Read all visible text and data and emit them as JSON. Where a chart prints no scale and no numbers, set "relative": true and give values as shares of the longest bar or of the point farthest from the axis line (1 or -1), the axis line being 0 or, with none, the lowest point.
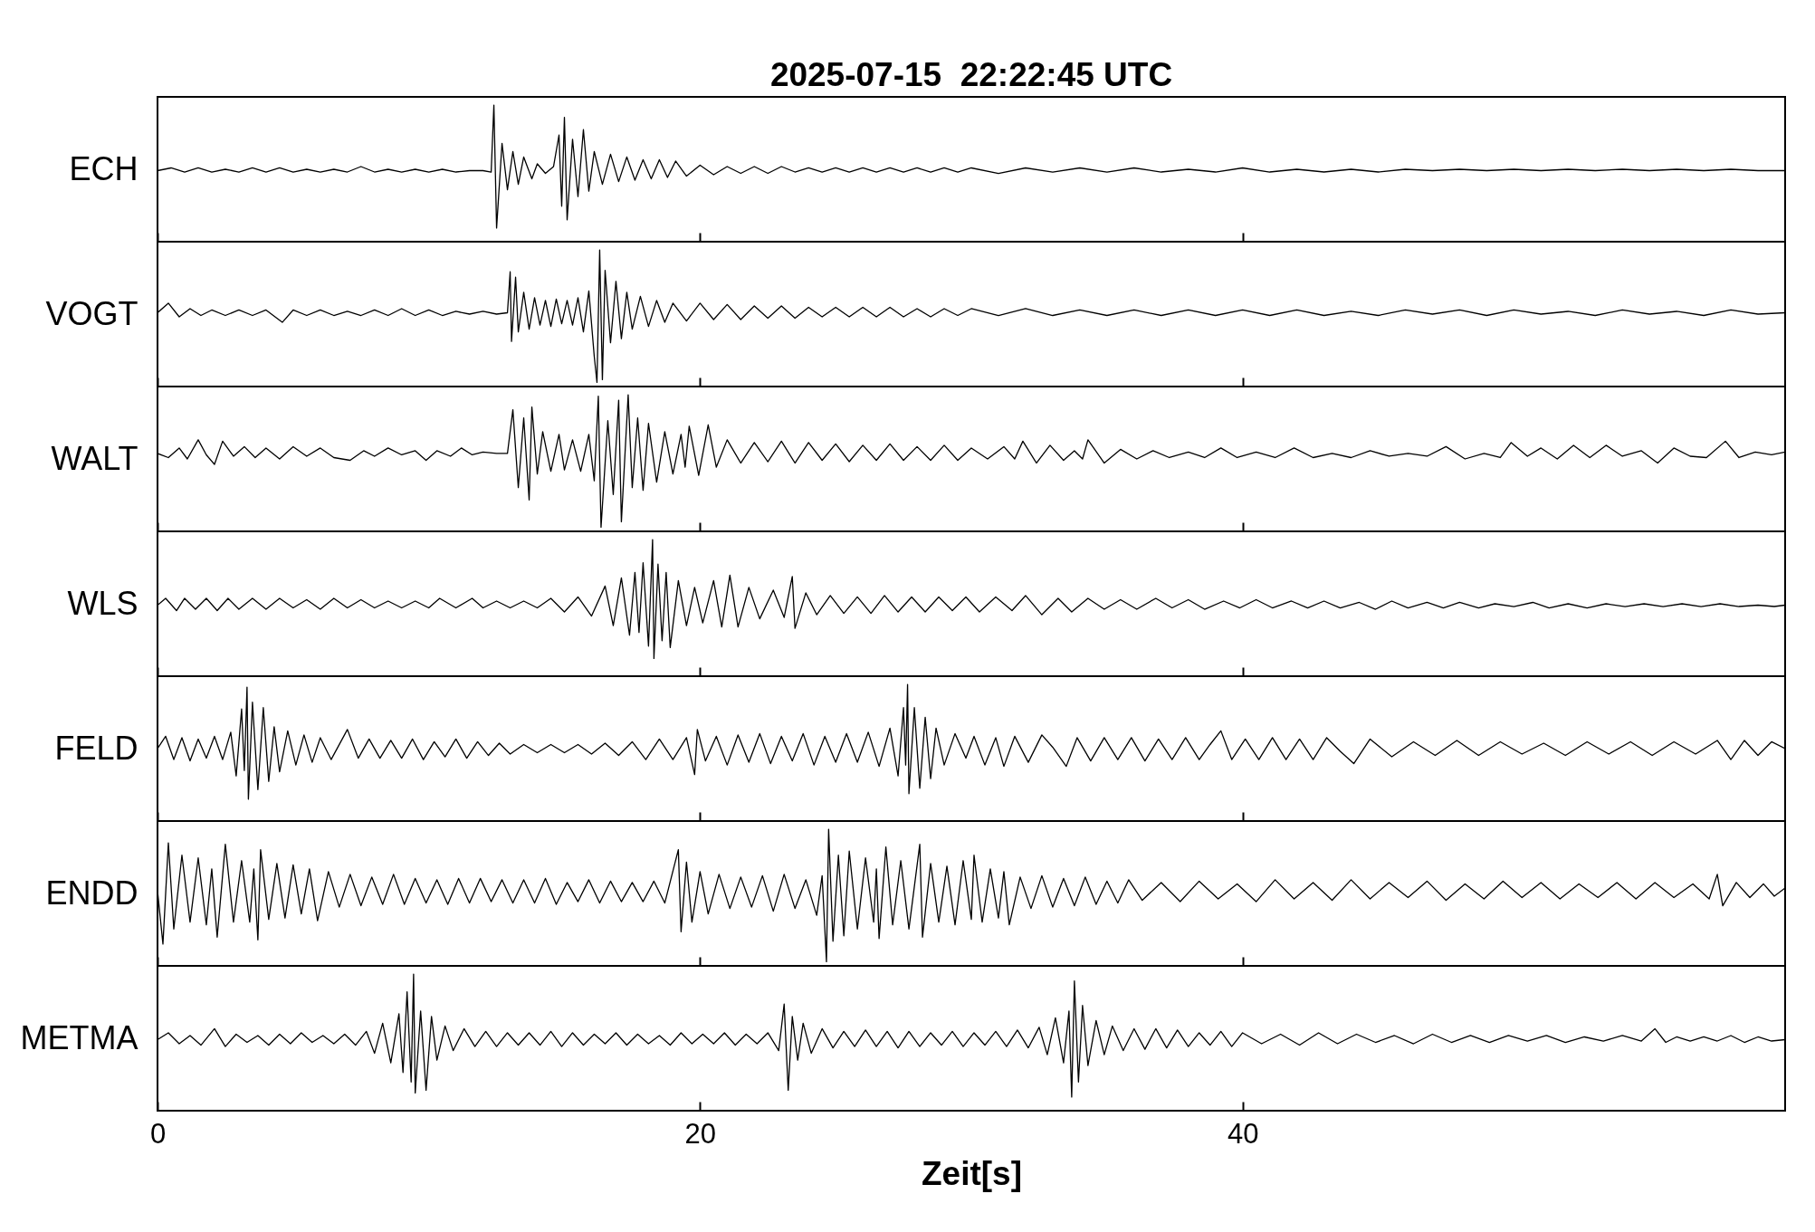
{
  "chart_data": [
    {
      "type": "line",
      "title": "2025-07-15  22:22:45 UTC",
      "ylabel": "ECH",
      "relative": true,
      "xlim": [
        0,
        60
      ],
      "xticks": [
        0,
        20,
        40
      ],
      "tick_labels": false,
      "x": [
        0,
        0.5,
        1,
        1.5,
        2,
        2.5,
        3,
        3.5,
        4,
        4.5,
        5,
        5.5,
        6,
        6.5,
        7,
        7.5,
        8,
        8.5,
        9,
        9.5,
        10,
        10.5,
        11,
        11.5,
        12,
        12.3,
        12.4,
        12.5,
        12.7,
        12.9,
        13.1,
        13.3,
        13.5,
        13.8,
        14,
        14.3,
        14.6,
        14.8,
        14.9,
        15,
        15.1,
        15.3,
        15.5,
        15.7,
        15.9,
        16.1,
        16.4,
        16.7,
        17,
        17.3,
        17.6,
        17.9,
        18.2,
        18.5,
        18.8,
        19.1,
        19.5,
        20,
        20.5,
        21,
        21.5,
        22,
        22.5,
        23,
        23.5,
        24,
        24.5,
        25,
        25.5,
        26,
        26.5,
        27,
        27.5,
        28,
        28.5,
        29,
        29.5,
        30,
        31,
        32,
        33,
        34,
        35,
        36,
        37,
        38,
        39,
        40,
        41,
        42,
        43,
        44,
        45,
        46,
        47,
        48,
        49,
        50,
        51,
        52,
        53,
        54,
        55,
        56,
        57,
        58,
        59,
        60
      ],
      "series": [
        {
          "color": "#000000",
          "values": [
            0.52,
            0.54,
            0.51,
            0.54,
            0.51,
            0.53,
            0.51,
            0.54,
            0.51,
            0.54,
            0.51,
            0.53,
            0.51,
            0.53,
            0.51,
            0.55,
            0.51,
            0.53,
            0.51,
            0.53,
            0.51,
            0.53,
            0.51,
            0.52,
            0.52,
            0.51,
            1,
            0.1,
            0.72,
            0.38,
            0.66,
            0.42,
            0.62,
            0.46,
            0.57,
            0.5,
            0.55,
            0.78,
            0.26,
            0.91,
            0.16,
            0.75,
            0.33,
            0.82,
            0.37,
            0.66,
            0.42,
            0.64,
            0.44,
            0.62,
            0.45,
            0.6,
            0.46,
            0.6,
            0.47,
            0.59,
            0.48,
            0.56,
            0.49,
            0.55,
            0.5,
            0.55,
            0.5,
            0.55,
            0.51,
            0.54,
            0.51,
            0.54,
            0.51,
            0.54,
            0.51,
            0.54,
            0.51,
            0.54,
            0.51,
            0.54,
            0.51,
            0.54,
            0.5,
            0.54,
            0.51,
            0.54,
            0.51,
            0.54,
            0.51,
            0.53,
            0.51,
            0.54,
            0.51,
            0.53,
            0.51,
            0.53,
            0.51,
            0.53,
            0.52,
            0.53,
            0.52,
            0.53,
            0.52,
            0.53,
            0.52,
            0.53,
            0.52,
            0.53,
            0.52,
            0.53,
            0.52,
            0.52
          ]
        }
      ]
    },
    {
      "type": "line",
      "ylabel": "VOGT",
      "relative": true,
      "xlim": [
        0,
        60
      ],
      "xticks": [
        0,
        20,
        40
      ],
      "tick_labels": false,
      "x": [
        0,
        0.4,
        0.8,
        1.2,
        1.6,
        2,
        2.5,
        3,
        3.5,
        4,
        4.6,
        5,
        5.5,
        6,
        6.5,
        7,
        7.5,
        8,
        8.5,
        9,
        9.5,
        10,
        10.5,
        11,
        11.5,
        12,
        12.5,
        12.9,
        13,
        13.05,
        13.2,
        13.3,
        13.5,
        13.7,
        13.9,
        14.1,
        14.3,
        14.5,
        14.7,
        14.9,
        15.1,
        15.3,
        15.5,
        15.7,
        15.9,
        16.1,
        16.2,
        16.3,
        16.4,
        16.5,
        16.7,
        16.9,
        17.1,
        17.3,
        17.5,
        17.8,
        18.1,
        18.4,
        18.7,
        19,
        19.5,
        20,
        20.5,
        21,
        21.5,
        22,
        22.5,
        23,
        23.5,
        24,
        24.5,
        25,
        25.5,
        26,
        26.5,
        27,
        27.5,
        28,
        28.5,
        29,
        29.5,
        30,
        31,
        32,
        33,
        34,
        35,
        36,
        37,
        38,
        39,
        40,
        41,
        42,
        43,
        44,
        45,
        46,
        47,
        48,
        49,
        50,
        51,
        52,
        53,
        54,
        55,
        56,
        57,
        58,
        59,
        60
      ],
      "series": [
        {
          "color": "#000000",
          "values": [
            0.54,
            0.61,
            0.51,
            0.57,
            0.52,
            0.56,
            0.52,
            0.56,
            0.52,
            0.56,
            0.47,
            0.56,
            0.52,
            0.56,
            0.52,
            0.55,
            0.52,
            0.56,
            0.52,
            0.57,
            0.52,
            0.56,
            0.52,
            0.55,
            0.53,
            0.55,
            0.53,
            0.54,
            0.84,
            0.33,
            0.8,
            0.4,
            0.69,
            0.42,
            0.65,
            0.45,
            0.63,
            0.44,
            0.64,
            0.46,
            0.63,
            0.45,
            0.65,
            0.4,
            0.7,
            0.22,
            0.03,
            1,
            0.05,
            0.85,
            0.32,
            0.77,
            0.35,
            0.69,
            0.42,
            0.66,
            0.44,
            0.63,
            0.47,
            0.61,
            0.48,
            0.61,
            0.49,
            0.6,
            0.49,
            0.59,
            0.5,
            0.59,
            0.5,
            0.58,
            0.51,
            0.58,
            0.51,
            0.58,
            0.51,
            0.58,
            0.51,
            0.57,
            0.51,
            0.57,
            0.52,
            0.57,
            0.52,
            0.57,
            0.52,
            0.56,
            0.52,
            0.56,
            0.52,
            0.56,
            0.52,
            0.56,
            0.52,
            0.56,
            0.52,
            0.55,
            0.52,
            0.56,
            0.53,
            0.56,
            0.52,
            0.56,
            0.53,
            0.55,
            0.52,
            0.56,
            0.53,
            0.55,
            0.52,
            0.56,
            0.53,
            0.54
          ]
        }
      ]
    },
    {
      "type": "line",
      "ylabel": "WALT",
      "relative": true,
      "xlim": [
        0,
        60
      ],
      "xticks": [
        0,
        20,
        40
      ],
      "tick_labels": false,
      "x": [
        0,
        0.4,
        0.8,
        1.1,
        1.5,
        1.8,
        2.1,
        2.4,
        2.8,
        3.2,
        3.6,
        4,
        4.5,
        5,
        5.5,
        6,
        6.5,
        7.1,
        7.6,
        8,
        8.5,
        9,
        9.5,
        9.9,
        10.3,
        10.8,
        11.2,
        11.6,
        12,
        12.5,
        12.9,
        13.1,
        13.3,
        13.5,
        13.7,
        13.8,
        14,
        14.2,
        14.5,
        14.8,
        15,
        15.3,
        15.6,
        15.9,
        16.1,
        16.25,
        16.35,
        16.6,
        16.8,
        17,
        17.1,
        17.35,
        17.5,
        17.7,
        17.9,
        18.1,
        18.4,
        18.7,
        19,
        19.3,
        19.45,
        19.6,
        19.95,
        20.3,
        20.6,
        21,
        21.5,
        22,
        22.5,
        23,
        23.5,
        24,
        24.5,
        25,
        25.5,
        26,
        26.5,
        27,
        27.5,
        28,
        28.5,
        29,
        29.5,
        30,
        30.6,
        31.2,
        31.6,
        31.9,
        32.4,
        32.9,
        33.4,
        33.8,
        34.1,
        34.3,
        34.9,
        35.5,
        36.1,
        36.7,
        37.3,
        38,
        38.6,
        39.2,
        39.8,
        40.5,
        41.2,
        41.9,
        42.6,
        43.3,
        44,
        44.7,
        45.4,
        46.1,
        46.8,
        47.5,
        48.2,
        48.9,
        49.5,
        49.9,
        50.5,
        51,
        51.6,
        52.2,
        52.8,
        53.4,
        54,
        54.7,
        55.3,
        55.9,
        56.5,
        57.1,
        57.8,
        58.3,
        58.9,
        59.5,
        60
      ],
      "series": [
        {
          "color": "#000000",
          "values": [
            0.57,
            0.54,
            0.61,
            0.53,
            0.67,
            0.56,
            0.49,
            0.66,
            0.55,
            0.62,
            0.54,
            0.61,
            0.53,
            0.62,
            0.55,
            0.61,
            0.54,
            0.52,
            0.59,
            0.55,
            0.61,
            0.56,
            0.59,
            0.52,
            0.59,
            0.55,
            0.61,
            0.56,
            0.58,
            0.57,
            0.57,
            0.89,
            0.32,
            0.83,
            0.23,
            0.91,
            0.42,
            0.73,
            0.44,
            0.71,
            0.45,
            0.67,
            0.44,
            0.71,
            0.37,
            0.99,
            0.03,
            0.81,
            0.27,
            0.96,
            0.07,
            1,
            0.32,
            0.83,
            0.3,
            0.79,
            0.36,
            0.73,
            0.42,
            0.71,
            0.47,
            0.77,
            0.41,
            0.78,
            0.47,
            0.67,
            0.5,
            0.65,
            0.51,
            0.66,
            0.5,
            0.65,
            0.52,
            0.64,
            0.51,
            0.63,
            0.52,
            0.64,
            0.52,
            0.62,
            0.52,
            0.63,
            0.52,
            0.61,
            0.53,
            0.62,
            0.53,
            0.66,
            0.5,
            0.63,
            0.52,
            0.59,
            0.53,
            0.67,
            0.5,
            0.6,
            0.53,
            0.59,
            0.54,
            0.58,
            0.54,
            0.61,
            0.54,
            0.58,
            0.54,
            0.61,
            0.54,
            0.57,
            0.54,
            0.59,
            0.55,
            0.57,
            0.55,
            0.62,
            0.53,
            0.57,
            0.54,
            0.65,
            0.55,
            0.61,
            0.53,
            0.63,
            0.54,
            0.63,
            0.55,
            0.59,
            0.5,
            0.61,
            0.55,
            0.54,
            0.66,
            0.54,
            0.58,
            0.56,
            0.58
          ]
        }
      ]
    },
    {
      "type": "line",
      "ylabel": "WLS",
      "relative": true,
      "xlim": [
        0,
        60
      ],
      "xticks": [
        0,
        20,
        40
      ],
      "tick_labels": false,
      "x": [
        0,
        0.3,
        0.7,
        1,
        1.4,
        1.8,
        2.2,
        2.6,
        3,
        3.5,
        4,
        4.5,
        5,
        5.5,
        6,
        6.5,
        7,
        7.5,
        8,
        8.5,
        9,
        9.5,
        10,
        10.4,
        11,
        11.6,
        12,
        12.5,
        13,
        13.5,
        14,
        14.5,
        15,
        15.5,
        16,
        16.5,
        16.8,
        17.1,
        17.4,
        17.6,
        17.75,
        17.9,
        18.1,
        18.25,
        18.3,
        18.45,
        18.6,
        18.75,
        18.9,
        19.2,
        19.5,
        19.8,
        20.1,
        20.5,
        20.8,
        21.1,
        21.4,
        21.8,
        22.2,
        22.7,
        23.1,
        23.4,
        23.5,
        23.9,
        24.3,
        24.8,
        25.3,
        25.8,
        26.3,
        26.8,
        27.3,
        27.8,
        28.3,
        28.8,
        29.3,
        29.8,
        30.3,
        30.9,
        31.5,
        32,
        32.6,
        33.2,
        33.7,
        34.3,
        34.9,
        35.5,
        36.1,
        36.8,
        37.4,
        38,
        38.6,
        39.3,
        39.9,
        40.5,
        41.1,
        41.8,
        42.4,
        43,
        43.6,
        44.3,
        44.9,
        45.5,
        46.1,
        46.8,
        47.4,
        48,
        48.7,
        49.3,
        50,
        50.7,
        51.3,
        52,
        52.7,
        53.4,
        54.1,
        54.8,
        55.5,
        56.2,
        56.9,
        57.6,
        58.3,
        59,
        59.6,
        60
      ],
      "series": [
        {
          "color": "#000000",
          "values": [
            0.52,
            0.57,
            0.48,
            0.57,
            0.49,
            0.57,
            0.48,
            0.57,
            0.49,
            0.57,
            0.49,
            0.57,
            0.5,
            0.56,
            0.49,
            0.57,
            0.5,
            0.56,
            0.5,
            0.55,
            0.5,
            0.55,
            0.5,
            0.57,
            0.5,
            0.57,
            0.5,
            0.55,
            0.5,
            0.55,
            0.5,
            0.57,
            0.47,
            0.58,
            0.44,
            0.66,
            0.37,
            0.72,
            0.3,
            0.76,
            0.32,
            0.83,
            0.22,
            1,
            0.13,
            0.82,
            0.26,
            0.76,
            0.21,
            0.7,
            0.37,
            0.65,
            0.39,
            0.7,
            0.36,
            0.74,
            0.36,
            0.65,
            0.42,
            0.63,
            0.43,
            0.73,
            0.35,
            0.61,
            0.45,
            0.59,
            0.46,
            0.58,
            0.46,
            0.59,
            0.47,
            0.58,
            0.47,
            0.58,
            0.48,
            0.58,
            0.47,
            0.58,
            0.48,
            0.59,
            0.45,
            0.57,
            0.47,
            0.57,
            0.49,
            0.56,
            0.49,
            0.57,
            0.5,
            0.56,
            0.49,
            0.55,
            0.5,
            0.56,
            0.5,
            0.55,
            0.5,
            0.55,
            0.5,
            0.54,
            0.49,
            0.55,
            0.5,
            0.54,
            0.5,
            0.54,
            0.5,
            0.53,
            0.51,
            0.54,
            0.5,
            0.53,
            0.5,
            0.53,
            0.51,
            0.53,
            0.51,
            0.53,
            0.51,
            0.53,
            0.51,
            0.52,
            0.51,
            0.52
          ]
        }
      ]
    },
    {
      "type": "line",
      "ylabel": "FELD",
      "relative": true,
      "xlim": [
        0,
        60
      ],
      "xticks": [
        0,
        20,
        40
      ],
      "tick_labels": false,
      "x": [
        0,
        0.3,
        0.6,
        0.9,
        1.2,
        1.5,
        1.8,
        2.1,
        2.4,
        2.7,
        2.9,
        3.1,
        3.2,
        3.3,
        3.35,
        3.5,
        3.7,
        3.9,
        4.1,
        4.3,
        4.5,
        4.8,
        5.1,
        5.4,
        5.7,
        6,
        6.4,
        7,
        7.4,
        7.8,
        8.2,
        8.6,
        9,
        9.4,
        9.8,
        10.2,
        10.6,
        11,
        11.4,
        11.8,
        12.2,
        12.6,
        13,
        13.5,
        14,
        14.5,
        15,
        15.5,
        16,
        16.5,
        17,
        17.5,
        18,
        18.5,
        19,
        19.5,
        19.8,
        19.9,
        20.2,
        20.6,
        21,
        21.4,
        21.8,
        22.2,
        22.6,
        23,
        23.4,
        23.8,
        24.2,
        24.6,
        25,
        25.4,
        25.8,
        26.2,
        26.6,
        27,
        27.3,
        27.5,
        27.58,
        27.65,
        27.7,
        27.9,
        28.1,
        28.3,
        28.5,
        28.7,
        29,
        29.4,
        29.8,
        30.1,
        30.5,
        30.9,
        31.2,
        31.6,
        32.1,
        32.6,
        33,
        33.5,
        33.9,
        34.4,
        34.9,
        35.4,
        35.9,
        36.4,
        36.9,
        37.4,
        37.9,
        38.4,
        38.8,
        39.2,
        39.6,
        40.1,
        40.6,
        41.1,
        41.6,
        42.1,
        42.6,
        43.1,
        43.6,
        44.1,
        44.7,
        45.5,
        46.3,
        47.1,
        47.9,
        48.7,
        49.5,
        50.3,
        51.1,
        51.9,
        52.7,
        53.5,
        54.3,
        55.1,
        55.9,
        56.7,
        57.5,
        58,
        58.5,
        59,
        59.5,
        60
      ],
      "series": [
        {
          "color": "#000000",
          "values": [
            0.53,
            0.62,
            0.45,
            0.61,
            0.44,
            0.6,
            0.46,
            0.62,
            0.45,
            0.65,
            0.33,
            0.82,
            0.37,
            0.98,
            0.16,
            0.87,
            0.23,
            0.83,
            0.29,
            0.69,
            0.36,
            0.66,
            0.41,
            0.63,
            0.43,
            0.61,
            0.45,
            0.67,
            0.46,
            0.6,
            0.46,
            0.59,
            0.46,
            0.6,
            0.45,
            0.58,
            0.47,
            0.6,
            0.46,
            0.58,
            0.48,
            0.57,
            0.49,
            0.56,
            0.5,
            0.56,
            0.5,
            0.56,
            0.49,
            0.57,
            0.48,
            0.58,
            0.45,
            0.6,
            0.45,
            0.61,
            0.34,
            0.67,
            0.44,
            0.62,
            0.41,
            0.63,
            0.43,
            0.64,
            0.42,
            0.62,
            0.44,
            0.64,
            0.41,
            0.62,
            0.43,
            0.64,
            0.43,
            0.65,
            0.4,
            0.68,
            0.33,
            0.83,
            0.41,
            1,
            0.2,
            0.83,
            0.24,
            0.76,
            0.31,
            0.68,
            0.41,
            0.64,
            0.46,
            0.62,
            0.41,
            0.61,
            0.4,
            0.62,
            0.43,
            0.63,
            0.54,
            0.4,
            0.61,
            0.44,
            0.61,
            0.45,
            0.61,
            0.44,
            0.6,
            0.45,
            0.61,
            0.45,
            0.56,
            0.66,
            0.45,
            0.6,
            0.45,
            0.61,
            0.45,
            0.6,
            0.45,
            0.61,
            0.51,
            0.42,
            0.6,
            0.47,
            0.58,
            0.48,
            0.59,
            0.48,
            0.58,
            0.49,
            0.57,
            0.48,
            0.58,
            0.49,
            0.58,
            0.48,
            0.58,
            0.49,
            0.59,
            0.45,
            0.59,
            0.48,
            0.58,
            0.53
          ]
        }
      ]
    },
    {
      "type": "line",
      "ylabel": "ENDD",
      "relative": true,
      "xlim": [
        0,
        60
      ],
      "xticks": [
        0,
        20,
        40
      ],
      "tick_labels": false,
      "x": [
        0,
        0.2,
        0.4,
        0.6,
        0.9,
        1.2,
        1.5,
        1.8,
        2,
        2.2,
        2.5,
        2.8,
        3.1,
        3.4,
        3.55,
        3.7,
        3.8,
        4.1,
        4.4,
        4.7,
        5,
        5.3,
        5.6,
        5.9,
        6.3,
        6.7,
        7.1,
        7.5,
        7.9,
        8.3,
        8.7,
        9.1,
        9.5,
        9.9,
        10.3,
        10.7,
        11.1,
        11.5,
        11.9,
        12.3,
        12.7,
        13.1,
        13.5,
        13.9,
        14.3,
        14.7,
        15.1,
        15.5,
        15.9,
        16.3,
        16.7,
        17.1,
        17.5,
        17.9,
        18.3,
        18.7,
        19.2,
        19.3,
        19.5,
        19.7,
        20,
        20.3,
        20.7,
        21.1,
        21.5,
        21.9,
        22.3,
        22.7,
        23.1,
        23.5,
        23.9,
        24.3,
        24.5,
        24.66,
        24.74,
        24.9,
        25.1,
        25.3,
        25.5,
        25.8,
        26.1,
        26.4,
        26.5,
        26.6,
        26.85,
        27.1,
        27.4,
        27.7,
        28.1,
        28.2,
        28.5,
        28.8,
        29.1,
        29.4,
        29.7,
        30,
        30.1,
        30.4,
        30.7,
        31,
        31.2,
        31.4,
        31.8,
        32.2,
        32.6,
        33,
        33.4,
        33.8,
        34.2,
        34.6,
        35,
        35.4,
        35.8,
        36.3,
        37,
        37.7,
        38.4,
        39.1,
        39.8,
        40.5,
        41.2,
        41.9,
        42.6,
        43.3,
        44,
        44.7,
        45.4,
        46.1,
        46.8,
        47.5,
        48.2,
        48.9,
        49.6,
        50.3,
        51,
        51.7,
        52.4,
        53.1,
        53.8,
        54.5,
        55.2,
        55.9,
        56.6,
        57.2,
        57.5,
        57.7,
        58.2,
        58.7,
        59.2,
        59.6,
        60
      ],
      "series": [
        {
          "color": "#000000",
          "values": [
            0.55,
            0.16,
            0.9,
            0.27,
            0.81,
            0.32,
            0.79,
            0.3,
            0.71,
            0.21,
            0.89,
            0.32,
            0.77,
            0.32,
            0.71,
            0.19,
            0.85,
            0.34,
            0.75,
            0.35,
            0.74,
            0.38,
            0.71,
            0.33,
            0.69,
            0.43,
            0.67,
            0.44,
            0.65,
            0.45,
            0.67,
            0.45,
            0.64,
            0.46,
            0.63,
            0.45,
            0.64,
            0.46,
            0.64,
            0.47,
            0.63,
            0.46,
            0.63,
            0.46,
            0.64,
            0.45,
            0.61,
            0.47,
            0.63,
            0.46,
            0.62,
            0.47,
            0.61,
            0.47,
            0.62,
            0.46,
            0.85,
            0.25,
            0.76,
            0.32,
            0.69,
            0.38,
            0.67,
            0.42,
            0.65,
            0.43,
            0.66,
            0.4,
            0.67,
            0.42,
            0.63,
            0.37,
            0.66,
            0.03,
            1,
            0.18,
            0.81,
            0.22,
            0.84,
            0.27,
            0.79,
            0.32,
            0.71,
            0.2,
            0.87,
            0.3,
            0.77,
            0.27,
            0.89,
            0.21,
            0.75,
            0.32,
            0.73,
            0.3,
            0.77,
            0.34,
            0.81,
            0.32,
            0.71,
            0.35,
            0.69,
            0.3,
            0.65,
            0.42,
            0.66,
            0.43,
            0.64,
            0.44,
            0.65,
            0.45,
            0.62,
            0.46,
            0.63,
            0.48,
            0.61,
            0.47,
            0.62,
            0.49,
            0.6,
            0.47,
            0.63,
            0.49,
            0.61,
            0.48,
            0.63,
            0.49,
            0.61,
            0.5,
            0.62,
            0.48,
            0.6,
            0.49,
            0.62,
            0.5,
            0.61,
            0.49,
            0.6,
            0.5,
            0.61,
            0.49,
            0.61,
            0.5,
            0.6,
            0.49,
            0.67,
            0.44,
            0.61,
            0.5,
            0.6,
            0.51,
            0.57
          ]
        }
      ]
    },
    {
      "type": "line",
      "ylabel": "METMA",
      "xlabel": "Zeit[s]",
      "relative": true,
      "xlim": [
        0,
        60
      ],
      "xticks": [
        0,
        20,
        40
      ],
      "tick_labels": "x",
      "x": [
        0,
        0.4,
        0.8,
        1.2,
        1.6,
        2.1,
        2.5,
        2.9,
        3.3,
        3.7,
        4.1,
        4.5,
        4.9,
        5.3,
        5.7,
        6.1,
        6.5,
        6.9,
        7.3,
        7.7,
        8,
        8.3,
        8.6,
        8.9,
        9.05,
        9.2,
        9.35,
        9.44,
        9.5,
        9.7,
        9.9,
        10.1,
        10.3,
        10.6,
        10.9,
        11.3,
        11.7,
        12.1,
        12.5,
        12.9,
        13.3,
        13.7,
        14.1,
        14.5,
        14.9,
        15.3,
        15.7,
        16.1,
        16.5,
        16.9,
        17.3,
        17.7,
        18.1,
        18.5,
        18.9,
        19.3,
        19.7,
        20.1,
        20.5,
        20.9,
        21.3,
        21.7,
        22.1,
        22.5,
        22.9,
        23.1,
        23.25,
        23.4,
        23.6,
        23.8,
        24.1,
        24.5,
        24.9,
        25.3,
        25.7,
        26.1,
        26.5,
        26.9,
        27.3,
        27.7,
        28.1,
        28.5,
        28.9,
        29.3,
        29.7,
        30.1,
        30.5,
        30.9,
        31.3,
        31.7,
        32.1,
        32.5,
        32.8,
        33.1,
        33.4,
        33.6,
        33.7,
        33.8,
        33.95,
        34.1,
        34.3,
        34.6,
        34.9,
        35.2,
        35.6,
        36,
        36.4,
        36.8,
        37.2,
        37.6,
        38,
        38.4,
        38.8,
        39.2,
        39.6,
        40,
        40.7,
        41.4,
        42.1,
        42.8,
        43.5,
        44.2,
        44.9,
        45.6,
        46.3,
        47,
        47.7,
        48.4,
        49.1,
        49.8,
        50.5,
        51.2,
        51.9,
        52.6,
        53.3,
        54,
        54.7,
        55.2,
        55.6,
        56,
        56.5,
        57,
        57.5,
        58,
        58.5,
        59,
        59.5,
        60
      ],
      "series": [
        {
          "color": "#000000",
          "values": [
            0.52,
            0.57,
            0.49,
            0.55,
            0.48,
            0.6,
            0.47,
            0.56,
            0.5,
            0.55,
            0.48,
            0.56,
            0.49,
            0.57,
            0.5,
            0.55,
            0.49,
            0.56,
            0.48,
            0.58,
            0.42,
            0.64,
            0.35,
            0.71,
            0.28,
            0.87,
            0.21,
            1,
            0.13,
            0.73,
            0.15,
            0.69,
            0.37,
            0.62,
            0.44,
            0.6,
            0.47,
            0.58,
            0.47,
            0.57,
            0.48,
            0.57,
            0.48,
            0.58,
            0.47,
            0.57,
            0.48,
            0.56,
            0.49,
            0.57,
            0.48,
            0.56,
            0.49,
            0.55,
            0.48,
            0.57,
            0.49,
            0.56,
            0.49,
            0.57,
            0.48,
            0.56,
            0.49,
            0.57,
            0.44,
            0.78,
            0.15,
            0.69,
            0.37,
            0.64,
            0.42,
            0.6,
            0.46,
            0.58,
            0.47,
            0.59,
            0.47,
            0.58,
            0.46,
            0.58,
            0.47,
            0.57,
            0.48,
            0.58,
            0.47,
            0.57,
            0.48,
            0.58,
            0.47,
            0.59,
            0.46,
            0.61,
            0.41,
            0.68,
            0.35,
            0.73,
            0.1,
            0.95,
            0.21,
            0.77,
            0.33,
            0.66,
            0.41,
            0.62,
            0.44,
            0.6,
            0.45,
            0.6,
            0.46,
            0.59,
            0.47,
            0.57,
            0.48,
            0.58,
            0.47,
            0.57,
            0.49,
            0.56,
            0.48,
            0.57,
            0.49,
            0.56,
            0.5,
            0.55,
            0.49,
            0.56,
            0.5,
            0.55,
            0.5,
            0.55,
            0.51,
            0.55,
            0.5,
            0.54,
            0.51,
            0.55,
            0.51,
            0.6,
            0.5,
            0.54,
            0.51,
            0.54,
            0.51,
            0.55,
            0.5,
            0.54,
            0.51,
            0.52
          ]
        }
      ]
    }
  ]
}
